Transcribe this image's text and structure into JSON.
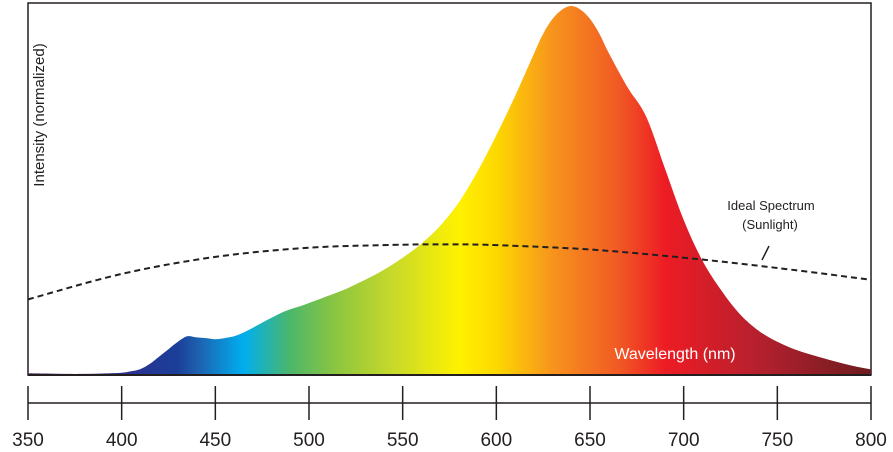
{
  "chart_data": {
    "type": "area",
    "xlabel": "Wavelength (nm)",
    "ylabel": "Intensity (normalized)",
    "xlim": [
      350,
      800
    ],
    "ylim": [
      0,
      1
    ],
    "x_ticks": [
      350,
      400,
      450,
      500,
      550,
      600,
      650,
      700,
      750,
      800
    ],
    "y_ticks_visible": false,
    "grid": false,
    "legend": "none",
    "series": [
      {
        "style": "filled-area-spectrum-gradient",
        "x": [
          350,
          360,
          370,
          380,
          390,
          400,
          405,
          410,
          415,
          420,
          425,
          430,
          435,
          440,
          445,
          450,
          455,
          460,
          465,
          470,
          475,
          480,
          485,
          490,
          495,
          500,
          510,
          520,
          530,
          540,
          550,
          560,
          570,
          580,
          590,
          600,
          610,
          620,
          625,
          630,
          635,
          640,
          645,
          650,
          655,
          660,
          670,
          680,
          690,
          700,
          710,
          720,
          730,
          740,
          750,
          760,
          770,
          780,
          790,
          800
        ],
        "y": [
          0.005,
          0.004,
          0.003,
          0.003,
          0.004,
          0.006,
          0.01,
          0.016,
          0.03,
          0.05,
          0.07,
          0.09,
          0.105,
          0.102,
          0.1,
          0.097,
          0.1,
          0.105,
          0.115,
          0.128,
          0.142,
          0.155,
          0.168,
          0.178,
          0.186,
          0.195,
          0.214,
          0.234,
          0.258,
          0.285,
          0.318,
          0.356,
          0.404,
          0.468,
          0.552,
          0.65,
          0.756,
          0.87,
          0.925,
          0.965,
          0.99,
          1.0,
          0.99,
          0.965,
          0.925,
          0.873,
          0.78,
          0.7,
          0.56,
          0.42,
          0.31,
          0.23,
          0.165,
          0.12,
          0.09,
          0.068,
          0.052,
          0.038,
          0.025,
          0.015
        ]
      },
      {
        "name": "Ideal Spectrum (Sunlight)",
        "style": "dashed-line",
        "color": "#231f20",
        "x": [
          350,
          400,
          450,
          500,
          550,
          575,
          600,
          650,
          700,
          750,
          800
        ],
        "y": [
          0.205,
          0.274,
          0.32,
          0.345,
          0.353,
          0.354,
          0.352,
          0.34,
          0.318,
          0.29,
          0.258
        ]
      }
    ],
    "annotations": [
      {
        "line1": "Ideal Spectrum",
        "line2": "(Sunlight)"
      }
    ],
    "gradient_stops": [
      {
        "wavelength": 350,
        "color": "#5a2c6d"
      },
      {
        "wavelength": 400,
        "color": "#2e2f8e"
      },
      {
        "wavelength": 430,
        "color": "#1a3f99"
      },
      {
        "wavelength": 440,
        "color": "#1f5ead"
      },
      {
        "wavelength": 465,
        "color": "#00aeef"
      },
      {
        "wavelength": 490,
        "color": "#4cb76a"
      },
      {
        "wavelength": 515,
        "color": "#8dc63f"
      },
      {
        "wavelength": 545,
        "color": "#c8d92a"
      },
      {
        "wavelength": 580,
        "color": "#fff200"
      },
      {
        "wavelength": 600,
        "color": "#fdd800"
      },
      {
        "wavelength": 630,
        "color": "#f7941d"
      },
      {
        "wavelength": 665,
        "color": "#f15a24"
      },
      {
        "wavelength": 690,
        "color": "#ed1c24"
      },
      {
        "wavelength": 740,
        "color": "#b5202e"
      },
      {
        "wavelength": 800,
        "color": "#6d1c1f"
      }
    ]
  }
}
